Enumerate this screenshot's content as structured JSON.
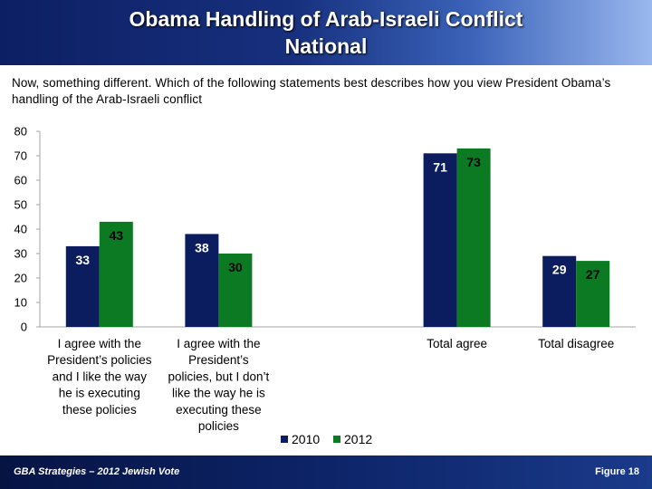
{
  "header": {
    "title_line1": "Obama Handling of Arab-Israeli Conflict",
    "title_line2": "National"
  },
  "question": "Now, something different.  Which of the following statements best describes how you view President Obama’s handling of the Arab-Israeli conflict",
  "chart_data": {
    "type": "bar",
    "categories": [
      [
        "I agree with the",
        "President’s policies",
        "and I like the way",
        "he is executing",
        "these policies"
      ],
      [
        "I agree with the",
        "President’s",
        "policies, but I don’t",
        "like the way he is",
        "executing these",
        "policies"
      ],
      [],
      [
        "Total agree"
      ],
      [
        "Total disagree"
      ]
    ],
    "series": [
      {
        "name": "2010",
        "values": [
          33,
          38,
          null,
          71,
          29
        ]
      },
      {
        "name": "2012",
        "values": [
          43,
          30,
          null,
          73,
          27
        ]
      }
    ],
    "colors": {
      "2010": "#0b1d5f",
      "2012": "#0b7a22"
    },
    "label_colors": {
      "2010": "#ffffff",
      "2012": "#000000"
    },
    "ylim": [
      0,
      80
    ],
    "yticks": [
      0,
      10,
      20,
      30,
      40,
      50,
      60,
      70,
      80
    ],
    "grid": false,
    "legend_placement": "bottom"
  },
  "footer": {
    "left": "GBA Strategies – 2012 Jewish Vote",
    "right": "Figure  18"
  }
}
